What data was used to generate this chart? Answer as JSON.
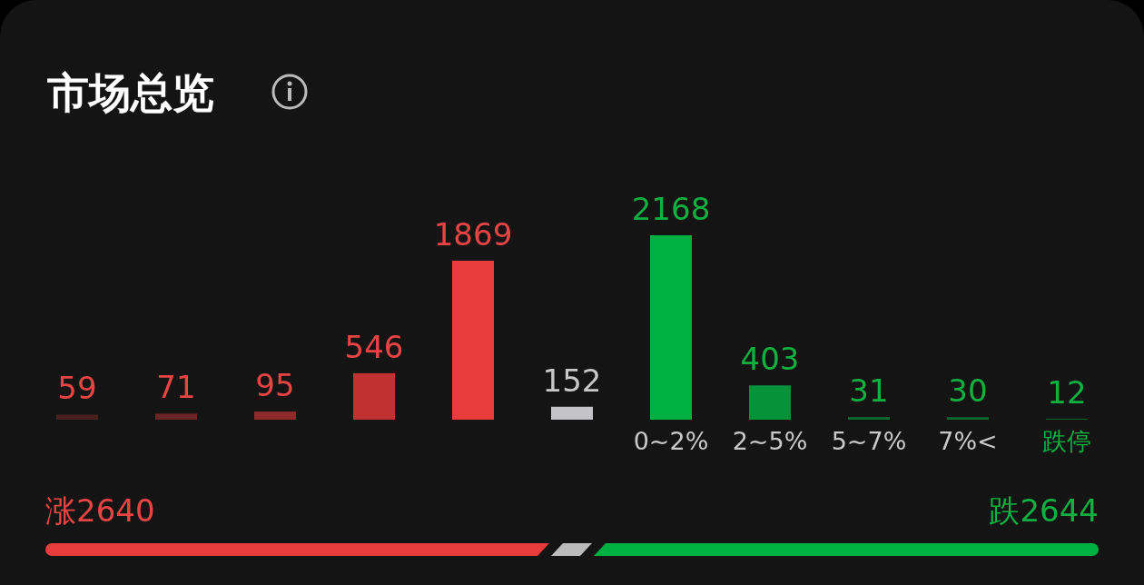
{
  "chart_data": {
    "type": "bar",
    "title": "市场总览",
    "categories": [
      null,
      null,
      null,
      null,
      null,
      null,
      "0~2%",
      "2~5%",
      "5~7%",
      "7%<",
      "跌停"
    ],
    "values": [
      59,
      71,
      95,
      546,
      1869,
      152,
      2168,
      403,
      31,
      30,
      12
    ],
    "colors": [
      "#4a1f1f",
      "#6a2424",
      "#8f2a2a",
      "#c03232",
      "#e83c3c",
      "#c4c4c8",
      "#00b040",
      "#05933a",
      "#0a6a30",
      "#0a6a30",
      "#0a5a2a"
    ],
    "data_labels": true,
    "annotations": [
      "涨2640",
      "跌2644"
    ]
  }
}
